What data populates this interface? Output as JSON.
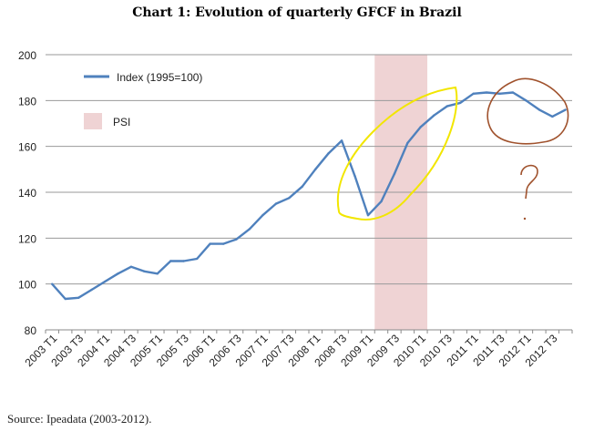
{
  "chart_data": {
    "type": "line",
    "title": "Chart 1: Evolution of quarterly GFCF in Brazil",
    "source": "Source: Ipeadata (2003-2012).",
    "ylim": [
      80,
      200
    ],
    "yticks": [
      80,
      100,
      120,
      140,
      160,
      180,
      200
    ],
    "x": [
      "2003 T1",
      "2003 T2",
      "2003 T3",
      "2003 T4",
      "2004 T1",
      "2004 T2",
      "2004 T3",
      "2004 T4",
      "2005 T1",
      "2005 T2",
      "2005 T3",
      "2005 T4",
      "2006 T1",
      "2006 T2",
      "2006 T3",
      "2006 T4",
      "2007 T1",
      "2007 T2",
      "2007 T3",
      "2007 T4",
      "2008 T1",
      "2008 T2",
      "2008 T3",
      "2008 T4",
      "2009 T1",
      "2009 T2",
      "2009 T3",
      "2009 T4",
      "2010 T1",
      "2010 T2",
      "2010 T3",
      "2010 T4",
      "2011 T1",
      "2011 T2",
      "2011 T3",
      "2011 T4",
      "2012 T1",
      "2012 T2",
      "2012 T3",
      "2012 T4"
    ],
    "xtick_labels": [
      "2003 T1",
      "2003 T3",
      "2004 T1",
      "2004 T3",
      "2005 T1",
      "2005 T3",
      "2006 T1",
      "2006 T3",
      "2007 T1",
      "2007 T3",
      "2008 T1",
      "2008 T3",
      "2009 T1",
      "2009 T3",
      "2010 T1",
      "2010 T3",
      "2011 T1",
      "2011 T3",
      "2012 T1",
      "2012 T3"
    ],
    "series": [
      {
        "name": "Index (1995=100)",
        "color": "#4f81bd",
        "values": [
          100,
          93.5,
          94,
          97.5,
          101,
          104.5,
          107.5,
          105.5,
          104.5,
          110,
          110,
          111,
          117.5,
          117.5,
          119.5,
          124,
          130,
          135,
          137.5,
          142.5,
          150,
          157,
          162.5,
          147,
          130,
          136,
          148,
          161.5,
          168.5,
          173.5,
          177.5,
          179,
          183,
          183.5,
          183,
          183.5,
          180,
          176,
          173,
          176
        ]
      }
    ],
    "shaded_region": {
      "name": "PSI",
      "color": "#efd3d4",
      "start": "2009 T2",
      "end": "2010 T1"
    },
    "legend": {
      "position": "top-left"
    }
  }
}
